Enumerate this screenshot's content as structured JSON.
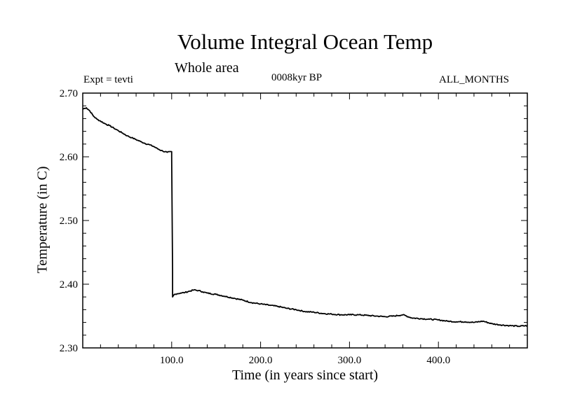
{
  "chart_data": {
    "type": "line",
    "title": "Volume Integral Ocean Temp",
    "subtitle": "Whole area",
    "annotations": {
      "left": "Expt = tevti",
      "center": "0008kyr BP",
      "right": "ALL_MONTHS"
    },
    "xlabel": "Time (in years since start)",
    "ylabel": "Temperature (in C)",
    "xlim": [
      0,
      500
    ],
    "ylim": [
      2.3,
      2.7
    ],
    "xticks": [
      100,
      200,
      300,
      400
    ],
    "xtick_labels": [
      "100.0",
      "200.0",
      "300.0",
      "400.0"
    ],
    "yticks": [
      2.3,
      2.4,
      2.5,
      2.6,
      2.7
    ],
    "ytick_labels": [
      "2.30",
      "2.40",
      "2.50",
      "2.60",
      "2.70"
    ],
    "grid": false,
    "series": [
      {
        "color": "#000000",
        "x": [
          0,
          4,
          8,
          12,
          16,
          20,
          25,
          30,
          35,
          40,
          45,
          50,
          55,
          60,
          65,
          70,
          75,
          80,
          85,
          90,
          95,
          100,
          100,
          101,
          101,
          103,
          106,
          110,
          115,
          120,
          125,
          130,
          135,
          140,
          150,
          160,
          170,
          180,
          190,
          200,
          210,
          220,
          230,
          240,
          250,
          260,
          270,
          280,
          290,
          300,
          310,
          320,
          330,
          340,
          350,
          360,
          370,
          380,
          390,
          400,
          410,
          420,
          430,
          440,
          450,
          460,
          470,
          480,
          490,
          500
        ],
        "y": [
          2.675,
          2.677,
          2.672,
          2.664,
          2.659,
          2.656,
          2.652,
          2.649,
          2.645,
          2.641,
          2.637,
          2.633,
          2.63,
          2.627,
          2.624,
          2.621,
          2.619,
          2.616,
          2.612,
          2.609,
          2.607,
          2.608,
          2.6,
          2.42,
          2.38,
          2.384,
          2.385,
          2.386,
          2.387,
          2.389,
          2.391,
          2.39,
          2.388,
          2.386,
          2.384,
          2.381,
          2.378,
          2.375,
          2.371,
          2.369,
          2.367,
          2.365,
          2.362,
          2.36,
          2.357,
          2.356,
          2.354,
          2.353,
          2.352,
          2.352,
          2.352,
          2.351,
          2.35,
          2.349,
          2.35,
          2.352,
          2.347,
          2.346,
          2.345,
          2.344,
          2.342,
          2.341,
          2.341,
          2.34,
          2.342,
          2.338,
          2.336,
          2.335,
          2.334,
          2.335
        ]
      }
    ]
  }
}
